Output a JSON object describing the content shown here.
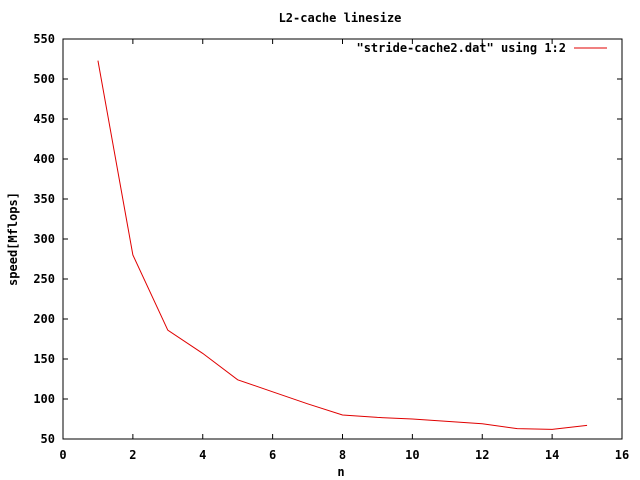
{
  "chart_data": {
    "type": "line",
    "title": "L2-cache linesize",
    "xlabel": "n",
    "ylabel": "speed[Mflops]",
    "xlim": [
      0,
      16
    ],
    "ylim": [
      50,
      550
    ],
    "xticks": [
      0,
      2,
      4,
      6,
      8,
      10,
      12,
      14,
      16
    ],
    "yticks": [
      50,
      100,
      150,
      200,
      250,
      300,
      350,
      400,
      450,
      500,
      550
    ],
    "grid": false,
    "legend_position": "top-right",
    "series": [
      {
        "name": "\"stride-cache2.dat\" using 1:2",
        "color": "#e00000",
        "x": [
          1,
          2,
          3,
          4,
          5,
          6,
          7,
          8,
          9,
          10,
          11,
          12,
          13,
          14,
          15
        ],
        "y": [
          523,
          280,
          186,
          157,
          124,
          109,
          94,
          80,
          77,
          75,
          72,
          69,
          63,
          62,
          67
        ]
      }
    ]
  }
}
